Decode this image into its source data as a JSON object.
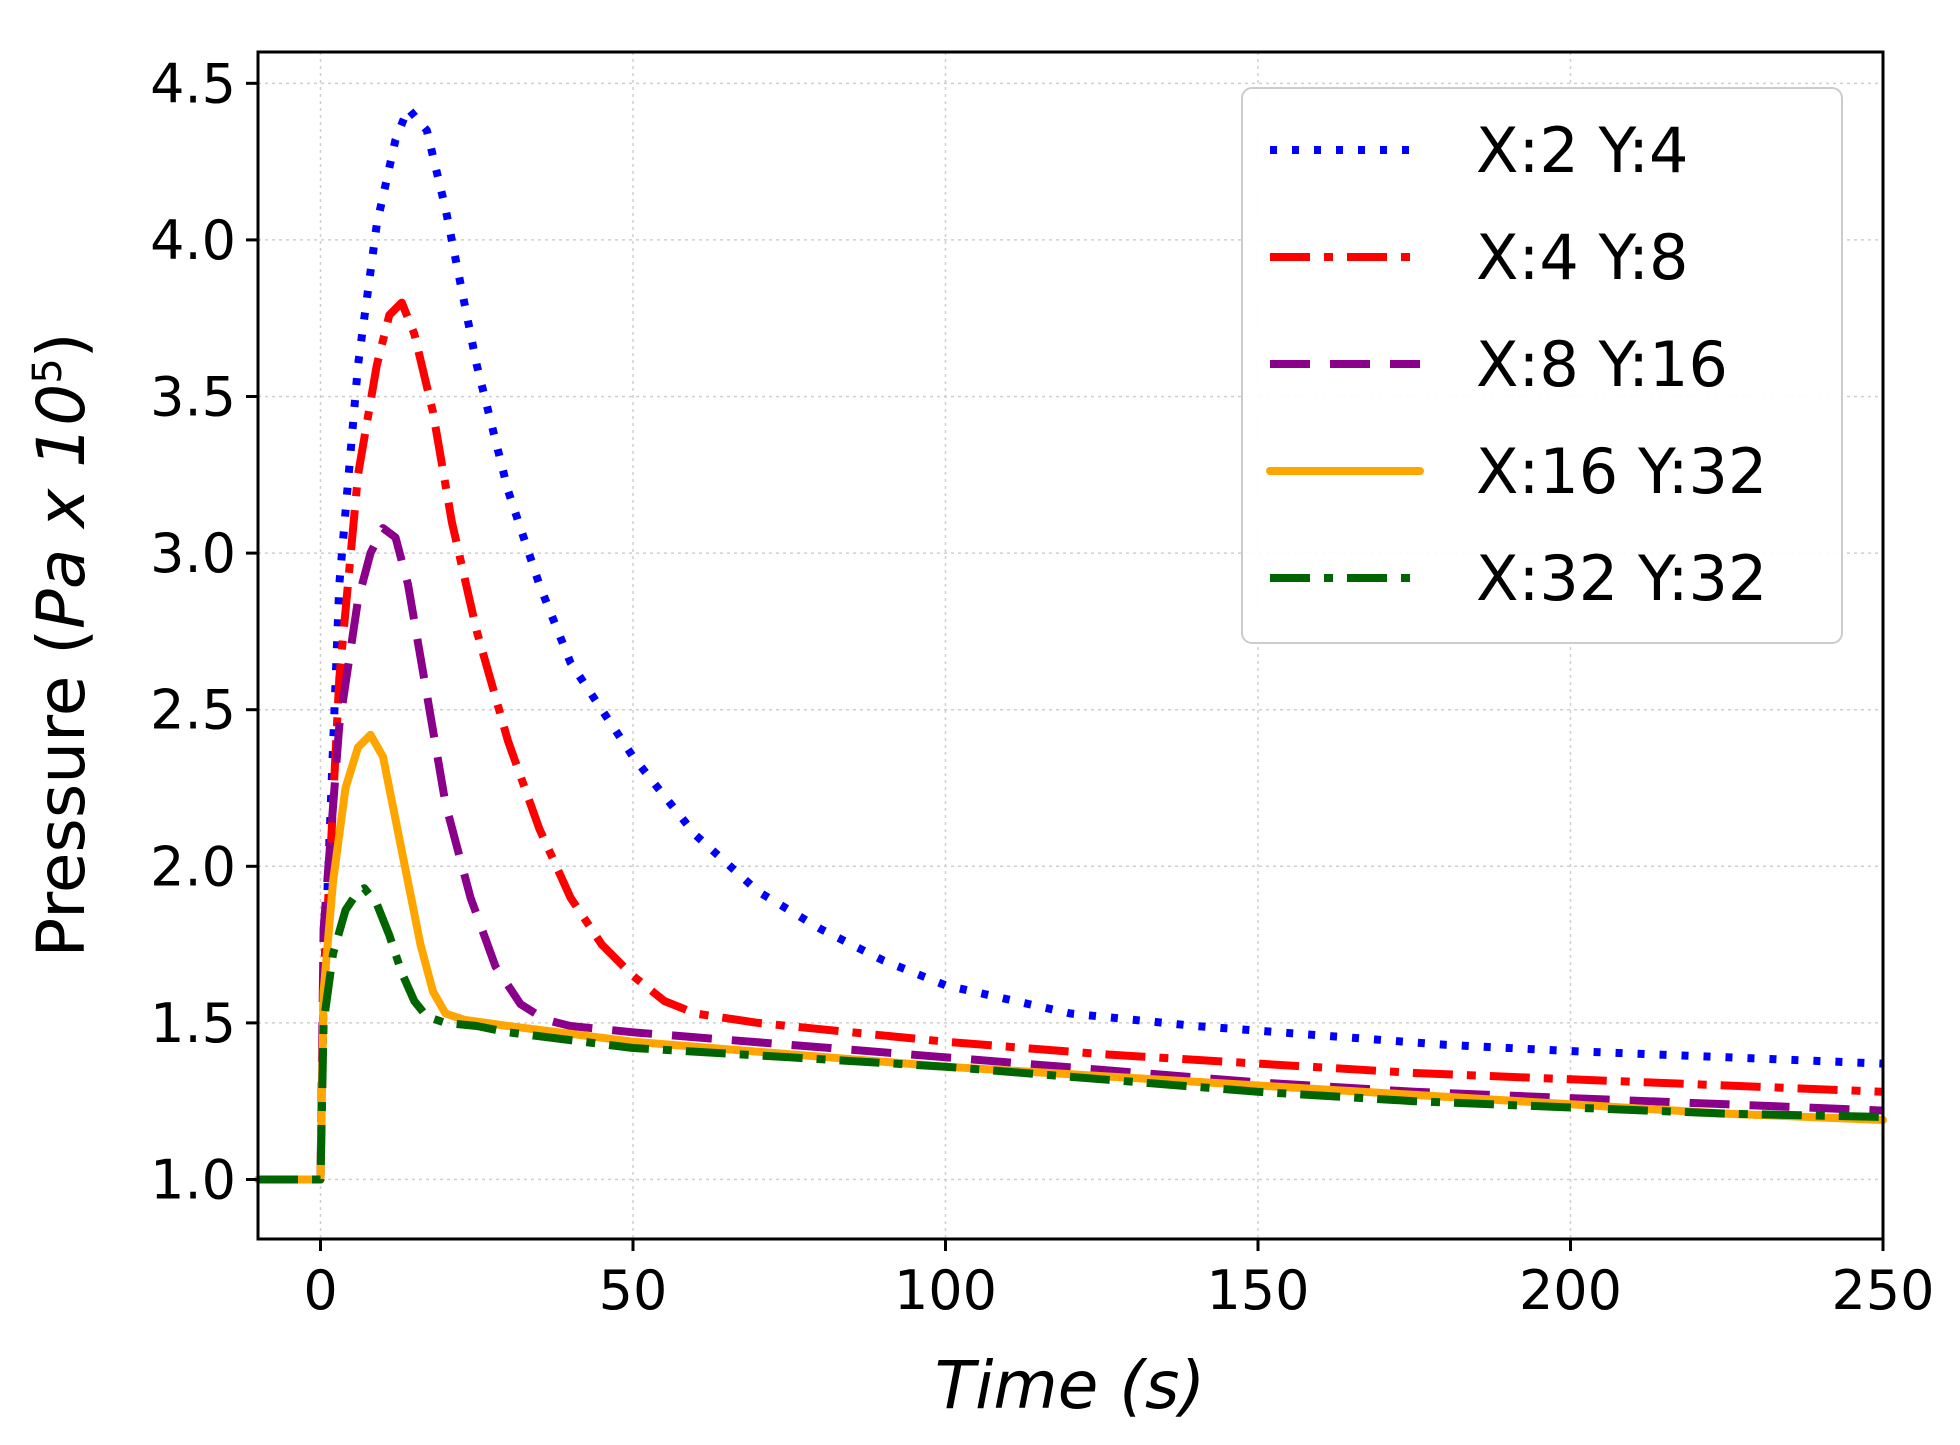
{
  "chart_data": {
    "type": "line",
    "title": "",
    "xlabel": "Time (s)",
    "ylabel": "Pressure (Pa x 10^5)",
    "ylabel_parts": {
      "prefix": "Pressure (",
      "unit_italic": "Pa x 10",
      "superscript": "5",
      "suffix": ")"
    },
    "xlabel_parts": {
      "main_italic": "Time (s)"
    },
    "xlim": [
      -10,
      250
    ],
    "ylim": [
      0.81,
      4.6
    ],
    "xticks": [
      0,
      50,
      100,
      150,
      200,
      250
    ],
    "xtick_labels": [
      "0",
      "50",
      "100",
      "150",
      "200",
      "250"
    ],
    "yticks": [
      1.0,
      1.5,
      2.0,
      2.5,
      3.0,
      3.5,
      4.0,
      4.5
    ],
    "ytick_labels": [
      "1.0",
      "1.5",
      "2.0",
      "2.5",
      "3.0",
      "3.5",
      "4.0",
      "4.5"
    ],
    "grid": true,
    "legend_position": "top-right",
    "series": [
      {
        "name": "X:2 Y:4",
        "color": "#0000ff",
        "style": "dotted",
        "points": [
          [
            -10,
            1.0
          ],
          [
            0,
            1.0
          ],
          [
            0.5,
            1.6
          ],
          [
            3,
            2.9
          ],
          [
            6,
            3.6
          ],
          [
            9,
            4.05
          ],
          [
            12,
            4.32
          ],
          [
            14,
            4.42
          ],
          [
            17,
            4.35
          ],
          [
            20,
            4.1
          ],
          [
            25,
            3.6
          ],
          [
            30,
            3.2
          ],
          [
            35,
            2.9
          ],
          [
            40,
            2.65
          ],
          [
            50,
            2.35
          ],
          [
            60,
            2.1
          ],
          [
            70,
            1.92
          ],
          [
            80,
            1.8
          ],
          [
            90,
            1.7
          ],
          [
            100,
            1.62
          ],
          [
            120,
            1.53
          ],
          [
            140,
            1.49
          ],
          [
            160,
            1.46
          ],
          [
            180,
            1.43
          ],
          [
            200,
            1.41
          ],
          [
            225,
            1.39
          ],
          [
            250,
            1.37
          ]
        ]
      },
      {
        "name": "X:4 Y:8",
        "color": "#ff0000",
        "style": "dashdot",
        "points": [
          [
            -10,
            1.0
          ],
          [
            0,
            1.0
          ],
          [
            0.5,
            1.6
          ],
          [
            3,
            2.6
          ],
          [
            6,
            3.25
          ],
          [
            9,
            3.6
          ],
          [
            11,
            3.76
          ],
          [
            13,
            3.8
          ],
          [
            15,
            3.7
          ],
          [
            18,
            3.45
          ],
          [
            21,
            3.1
          ],
          [
            25,
            2.75
          ],
          [
            30,
            2.4
          ],
          [
            35,
            2.12
          ],
          [
            40,
            1.9
          ],
          [
            45,
            1.75
          ],
          [
            50,
            1.65
          ],
          [
            55,
            1.57
          ],
          [
            60,
            1.53
          ],
          [
            70,
            1.5
          ],
          [
            80,
            1.48
          ],
          [
            100,
            1.44
          ],
          [
            125,
            1.4
          ],
          [
            150,
            1.37
          ],
          [
            175,
            1.34
          ],
          [
            200,
            1.32
          ],
          [
            225,
            1.3
          ],
          [
            250,
            1.28
          ]
        ]
      },
      {
        "name": "X:8 Y:16",
        "color": "#8b008b",
        "style": "dashed",
        "points": [
          [
            -10,
            1.0
          ],
          [
            0,
            1.0
          ],
          [
            0.5,
            1.8
          ],
          [
            3,
            2.45
          ],
          [
            6,
            2.85
          ],
          [
            8,
            3.0
          ],
          [
            10,
            3.08
          ],
          [
            12,
            3.05
          ],
          [
            14,
            2.9
          ],
          [
            17,
            2.55
          ],
          [
            20,
            2.2
          ],
          [
            24,
            1.9
          ],
          [
            28,
            1.68
          ],
          [
            32,
            1.56
          ],
          [
            36,
            1.51
          ],
          [
            40,
            1.49
          ],
          [
            50,
            1.47
          ],
          [
            75,
            1.43
          ],
          [
            100,
            1.39
          ],
          [
            125,
            1.35
          ],
          [
            150,
            1.31
          ],
          [
            175,
            1.28
          ],
          [
            200,
            1.26
          ],
          [
            225,
            1.24
          ],
          [
            250,
            1.22
          ]
        ]
      },
      {
        "name": "X:16 Y:32",
        "color": "#ffa500",
        "style": "solid",
        "points": [
          [
            -10,
            1.0
          ],
          [
            0,
            1.0
          ],
          [
            0.5,
            1.6
          ],
          [
            2,
            1.95
          ],
          [
            4,
            2.25
          ],
          [
            6,
            2.38
          ],
          [
            8,
            2.42
          ],
          [
            10,
            2.35
          ],
          [
            12,
            2.15
          ],
          [
            14,
            1.95
          ],
          [
            16,
            1.75
          ],
          [
            18,
            1.6
          ],
          [
            20,
            1.53
          ],
          [
            23,
            1.51
          ],
          [
            30,
            1.49
          ],
          [
            50,
            1.44
          ],
          [
            75,
            1.4
          ],
          [
            100,
            1.36
          ],
          [
            125,
            1.33
          ],
          [
            150,
            1.3
          ],
          [
            175,
            1.27
          ],
          [
            200,
            1.24
          ],
          [
            225,
            1.21
          ],
          [
            250,
            1.19
          ]
        ]
      },
      {
        "name": "X:32 Y:32",
        "color": "#006400",
        "style": "dashdot",
        "points": [
          [
            -10,
            1.0
          ],
          [
            0,
            1.0
          ],
          [
            0.5,
            1.5
          ],
          [
            2,
            1.72
          ],
          [
            4,
            1.86
          ],
          [
            6,
            1.92
          ],
          [
            7,
            1.93
          ],
          [
            9,
            1.88
          ],
          [
            11,
            1.78
          ],
          [
            13,
            1.66
          ],
          [
            15,
            1.57
          ],
          [
            17,
            1.52
          ],
          [
            20,
            1.5
          ],
          [
            25,
            1.49
          ],
          [
            30,
            1.47
          ],
          [
            50,
            1.42
          ],
          [
            75,
            1.39
          ],
          [
            100,
            1.36
          ],
          [
            125,
            1.32
          ],
          [
            150,
            1.28
          ],
          [
            175,
            1.25
          ],
          [
            200,
            1.23
          ],
          [
            225,
            1.21
          ],
          [
            250,
            1.2
          ]
        ]
      }
    ]
  }
}
